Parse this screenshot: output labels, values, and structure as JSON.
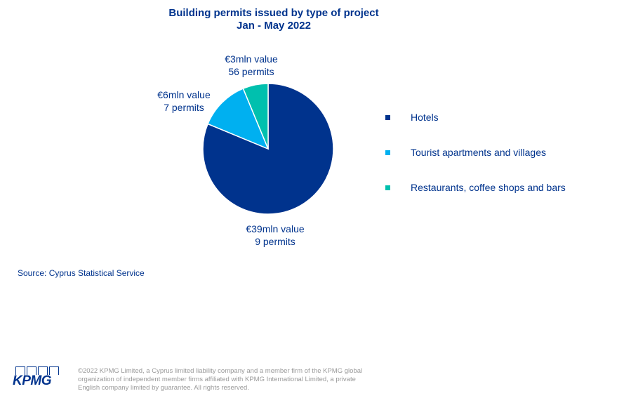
{
  "title_line1": "Building permits issued by type of project",
  "title_line2": "Jan - May 2022",
  "chart_data": {
    "type": "pie",
    "slices": [
      {
        "name": "Hotels",
        "value": 39,
        "value_label": "€39mln value",
        "permits_label": "9 permits",
        "color": "#00338d"
      },
      {
        "name": "Tourist apartments and villages",
        "value": 6,
        "value_label": "€6mln value",
        "permits_label": "7 permits",
        "color": "#00b0f0"
      },
      {
        "name": "Restaurants, coffee shops and bars",
        "value": 3,
        "value_label": "€3mln value",
        "permits_label": "56 permits",
        "color": "#00c0ae"
      }
    ],
    "legend_position": "right"
  },
  "source": "Source: Cyprus Statistical Service",
  "logo_text": "KPMG",
  "copyright": "©2022 KPMG Limited, a Cyprus limited liability company and a member firm of the KPMG global organization of independent member firms affiliated with KPMG International Limited, a private English company limited by guarantee. All rights reserved."
}
